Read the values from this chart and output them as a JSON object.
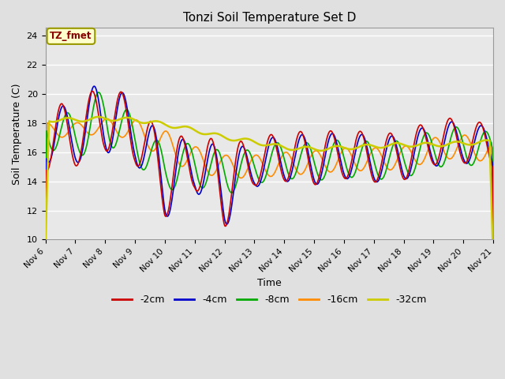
{
  "title": "Tonzi Soil Temperature Set D",
  "xlabel": "Time",
  "ylabel": "Soil Temperature (C)",
  "ylim": [
    10,
    24.5
  ],
  "yticks": [
    10,
    12,
    14,
    16,
    18,
    20,
    22,
    24
  ],
  "annotation_text": "TZ_fmet",
  "annotation_color": "#8B0000",
  "annotation_bg": "#FFFFCC",
  "annotation_border": "#999900",
  "series": {
    "-2cm": {
      "color": "#CC0000",
      "lw": 1.2
    },
    "-4cm": {
      "color": "#0000CC",
      "lw": 1.2
    },
    "-8cm": {
      "color": "#00AA00",
      "lw": 1.2
    },
    "-16cm": {
      "color": "#FF8C00",
      "lw": 1.2
    },
    "-32cm": {
      "color": "#CCCC00",
      "lw": 1.8
    }
  },
  "x_tick_labels": [
    "Nov 6",
    "Nov 7",
    "Nov 8",
    "Nov 9",
    "Nov 10",
    "Nov 11",
    "Nov 12",
    "Nov 13",
    "Nov 14",
    "Nov 15",
    "Nov 16",
    "Nov 17",
    "Nov 18",
    "Nov 19",
    "Nov 20",
    "Nov 21"
  ],
  "fig_bg": "#E0E0E0",
  "plot_bg": "#E8E8E8",
  "grid_color": "#FFFFFF"
}
